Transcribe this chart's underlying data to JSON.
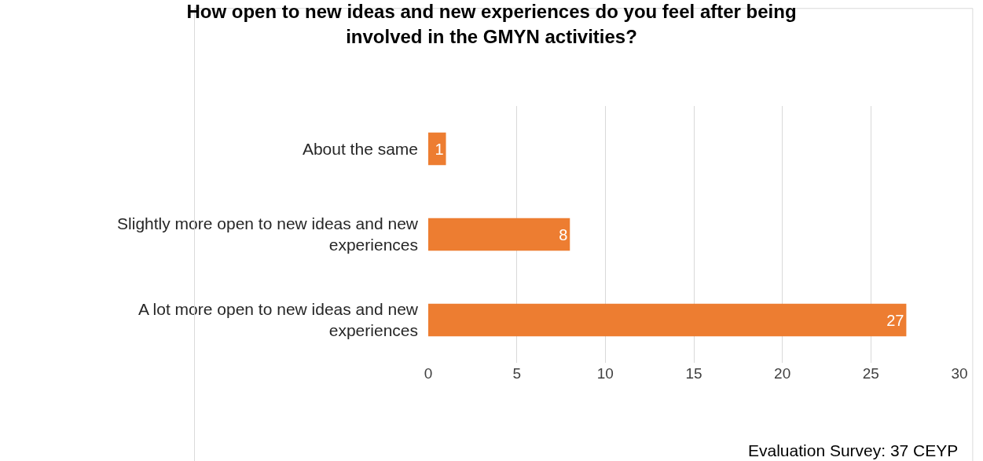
{
  "chart_data": {
    "type": "bar",
    "orientation": "horizontal",
    "title": "How open to new ideas and new experiences do you feel after being involved in the GMYN activities?",
    "categories": [
      "About the same",
      "Slightly more open to new ideas and new experiences",
      "A lot more open to new ideas and new experiences"
    ],
    "values": [
      1,
      8,
      27
    ],
    "color": "#ed7d31",
    "xlim": [
      0,
      30
    ],
    "xticks": [
      0,
      5,
      10,
      15,
      20,
      25,
      30
    ],
    "grid": "x",
    "data_labels": true,
    "annotations": [
      "Evaluation Survey: 37 CEYP"
    ]
  }
}
